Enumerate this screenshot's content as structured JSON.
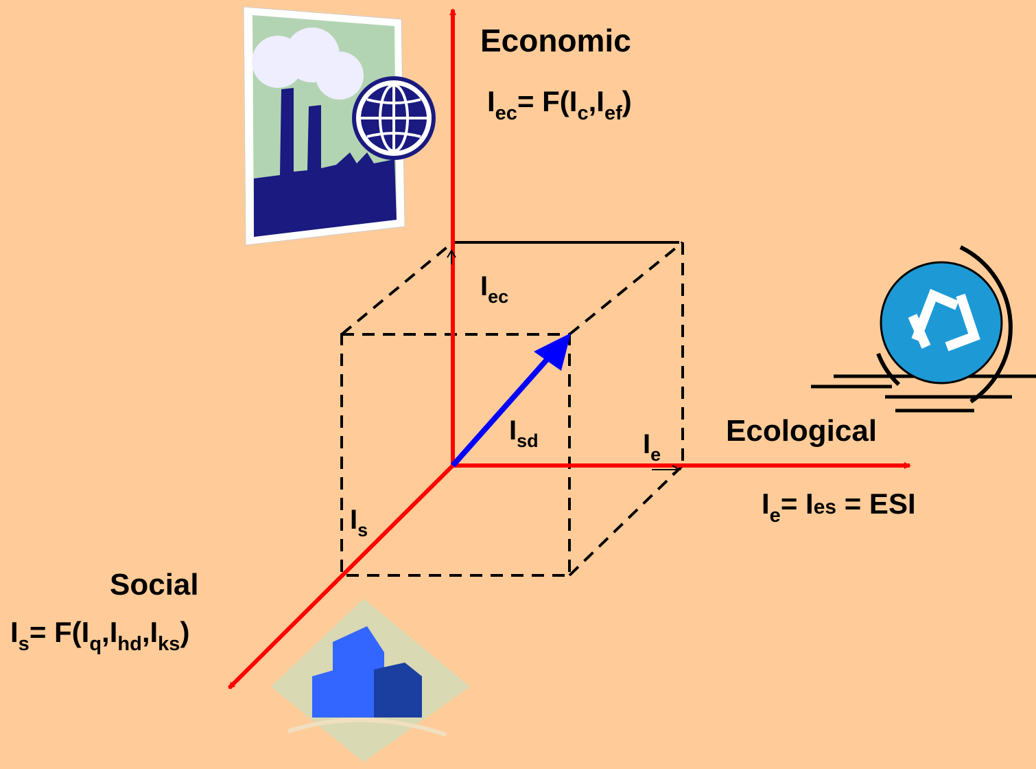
{
  "labels": [
    {
      "parts": [
        {
          "t": "Economic"
        }
      ]
    },
    {
      "parts": [
        {
          "t": "I"
        },
        {
          "sub": "ec"
        },
        {
          "t": "= F(I"
        },
        {
          "sub": "c"
        },
        {
          "t": ",I"
        },
        {
          "sub": "ef"
        },
        {
          "t": ")"
        }
      ]
    },
    {
      "parts": [
        {
          "t": "I"
        },
        {
          "sub": "ec"
        }
      ]
    },
    {
      "parts": [
        {
          "t": "I"
        },
        {
          "sub": "sd"
        }
      ]
    },
    {
      "parts": [
        {
          "t": "I"
        },
        {
          "sub": "e"
        }
      ]
    },
    {
      "parts": [
        {
          "t": "Ecological"
        }
      ]
    },
    {
      "parts": [
        {
          "t": "I"
        },
        {
          "sub": "e"
        },
        {
          "t": "= I"
        },
        {
          "small": "es"
        },
        {
          "t": " = ESI"
        }
      ]
    },
    {
      "parts": [
        {
          "t": "I"
        },
        {
          "sub": "s"
        }
      ]
    },
    {
      "parts": [
        {
          "t": "Social"
        }
      ]
    },
    {
      "parts": [
        {
          "t": "I"
        },
        {
          "sub": "s"
        },
        {
          "t": "= F(I"
        },
        {
          "sub": "q"
        },
        {
          "t": ",I"
        },
        {
          "sub": "hd"
        },
        {
          "t": ",I"
        },
        {
          "sub": "ks"
        },
        {
          "t": ")"
        }
      ]
    }
  ]
}
